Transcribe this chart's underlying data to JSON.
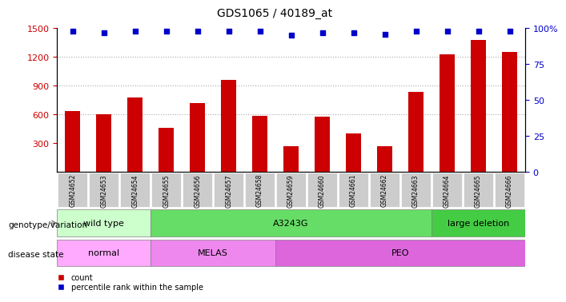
{
  "title": "GDS1065 / 40189_at",
  "samples": [
    "GSM24652",
    "GSM24653",
    "GSM24654",
    "GSM24655",
    "GSM24656",
    "GSM24657",
    "GSM24658",
    "GSM24659",
    "GSM24660",
    "GSM24661",
    "GSM24662",
    "GSM24663",
    "GSM24664",
    "GSM24665",
    "GSM24666"
  ],
  "counts": [
    640,
    600,
    780,
    460,
    720,
    960,
    590,
    270,
    580,
    400,
    270,
    840,
    1230,
    1380,
    1250
  ],
  "percentile_ranks": [
    98,
    97,
    98,
    98,
    98,
    98,
    98,
    95,
    97,
    97,
    96,
    98,
    98,
    98,
    98
  ],
  "bar_color": "#cc0000",
  "dot_color": "#0000cc",
  "ylim_left": [
    0,
    1500
  ],
  "ylim_right": [
    0,
    100
  ],
  "yticks_left": [
    300,
    600,
    900,
    1200,
    1500
  ],
  "yticks_right": [
    0,
    25,
    50,
    75,
    100
  ],
  "genotype_groups": [
    {
      "label": "wild type",
      "start": 0,
      "end": 3,
      "color": "#ccffcc"
    },
    {
      "label": "A3243G",
      "start": 3,
      "end": 12,
      "color": "#66dd66"
    },
    {
      "label": "large deletion",
      "start": 12,
      "end": 15,
      "color": "#44cc44"
    }
  ],
  "disease_groups": [
    {
      "label": "normal",
      "start": 0,
      "end": 3,
      "color": "#ffaaff"
    },
    {
      "label": "MELAS",
      "start": 3,
      "end": 7,
      "color": "#ee88ee"
    },
    {
      "label": "PEO",
      "start": 7,
      "end": 15,
      "color": "#dd66dd"
    }
  ],
  "legend_items": [
    {
      "label": "count",
      "color": "#cc0000",
      "marker": "s"
    },
    {
      "label": "percentile rank within the sample",
      "color": "#0000cc",
      "marker": "s"
    }
  ],
  "left_label_color": "#cc0000",
  "right_label_color": "#0000cc",
  "grid_color": "#aaaaaa",
  "tick_bg_color": "#cccccc",
  "genotype_label": "genotype/variation",
  "disease_label": "disease state"
}
